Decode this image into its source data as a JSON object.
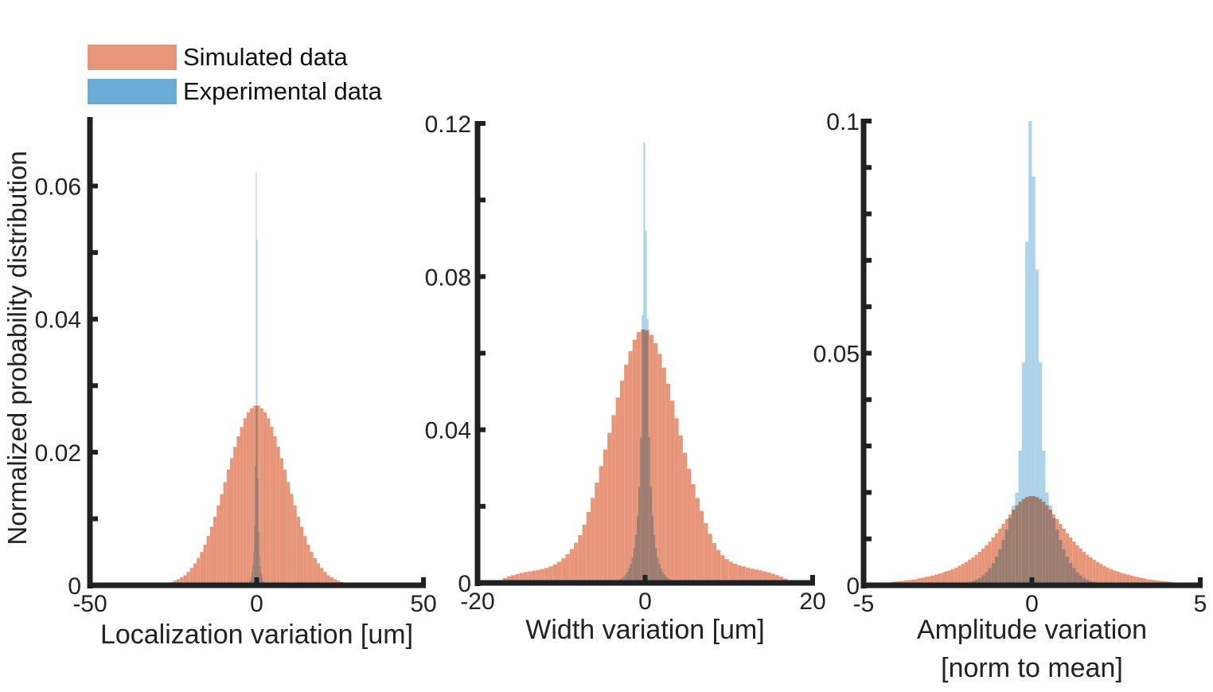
{
  "chart_data": {
    "type": "bar",
    "subtype": "overlaid-histogram",
    "ylabel": "Normalized probability distribution",
    "legend": {
      "placement": "top-left",
      "entries": [
        {
          "name": "Simulated data",
          "color": "#e8967a"
        },
        {
          "name": "Experimental data",
          "color": "#6aaed8"
        }
      ]
    },
    "overlap_color": "#8a88a4",
    "panels": [
      {
        "id": "localization",
        "xlabel": [
          "Localization variation [um]"
        ],
        "xlim": [
          -50,
          50
        ],
        "ylim": [
          0,
          0.07
        ],
        "xticks": [
          {
            "v": -50,
            "label": "-50"
          },
          {
            "v": 0,
            "label": "0"
          },
          {
            "v": 50,
            "label": "50"
          }
        ],
        "yticks_major": [
          {
            "v": 0,
            "label": "0"
          },
          {
            "v": 0.02,
            "label": "0.02"
          },
          {
            "v": 0.04,
            "label": "0.04"
          },
          {
            "v": 0.06,
            "label": "0.06"
          }
        ],
        "yticks_minor": [
          0.01,
          0.03,
          0.05
        ],
        "series": [
          {
            "name": "Simulated data",
            "bin_width": 1,
            "bin_centers": [
              -27.5,
              -26.5,
              -25.5,
              -24.5,
              -23.5,
              -22.5,
              -21.5,
              -20.5,
              -19.5,
              -18.5,
              -17.5,
              -16.5,
              -15.5,
              -14.5,
              -13.5,
              -12.5,
              -11.5,
              -10.5,
              -9.5,
              -8.5,
              -7.5,
              -6.5,
              -5.5,
              -4.5,
              -3.5,
              -2.5,
              -1.5,
              -0.5,
              0.5,
              1.5,
              2.5,
              3.5,
              4.5,
              5.5,
              6.5,
              7.5,
              8.5,
              9.5,
              10.5,
              11.5,
              12.5,
              13.5,
              14.5,
              15.5,
              16.5,
              17.5,
              18.5,
              19.5,
              20.5,
              21.5,
              22.5,
              23.5,
              24.5,
              25.5,
              26.5,
              27.5
            ],
            "values": [
              0.0002,
              0.0003,
              0.0005,
              0.0007,
              0.0009,
              0.0012,
              0.0015,
              0.002,
              0.0026,
              0.0033,
              0.0041,
              0.005,
              0.0061,
              0.0074,
              0.0088,
              0.0103,
              0.012,
              0.0137,
              0.0155,
              0.0174,
              0.0191,
              0.0208,
              0.0224,
              0.0238,
              0.0251,
              0.026,
              0.0266,
              0.027,
              0.027,
              0.0266,
              0.026,
              0.0251,
              0.0238,
              0.0224,
              0.0208,
              0.0191,
              0.0174,
              0.0155,
              0.0137,
              0.012,
              0.0103,
              0.0088,
              0.0074,
              0.0061,
              0.005,
              0.0041,
              0.0033,
              0.0026,
              0.002,
              0.0015,
              0.0012,
              0.0009,
              0.0007,
              0.0005,
              0.0003,
              0.0002
            ]
          },
          {
            "name": "Experimental data",
            "bin_width": 0.25,
            "bin_centers": [
              -2.125,
              -1.875,
              -1.625,
              -1.375,
              -1.125,
              -0.875,
              -0.625,
              -0.375,
              -0.125,
              0.125,
              0.375,
              0.625,
              0.875,
              1.125,
              1.375,
              1.625,
              1.875,
              2.125
            ],
            "values": [
              0.0004,
              0.0008,
              0.0012,
              0.002,
              0.003,
              0.005,
              0.009,
              0.018,
              0.062,
              0.052,
              0.016,
              0.008,
              0.0045,
              0.0028,
              0.0018,
              0.0011,
              0.0007,
              0.0004
            ]
          }
        ]
      },
      {
        "id": "width",
        "xlabel": [
          "Width variation [um]"
        ],
        "xlim": [
          -20,
          20
        ],
        "ylim": [
          0,
          0.12
        ],
        "xticks": [
          {
            "v": -20,
            "label": "-20"
          },
          {
            "v": 0,
            "label": "0"
          },
          {
            "v": 20,
            "label": "20"
          }
        ],
        "yticks_major": [
          {
            "v": 0,
            "label": "0"
          },
          {
            "v": 0.04,
            "label": "0.04"
          },
          {
            "v": 0.08,
            "label": "0.08"
          },
          {
            "v": 0.12,
            "label": "0.12"
          }
        ],
        "yticks_minor": [
          0.02,
          0.06,
          0.1
        ],
        "series": [
          {
            "name": "Simulated data",
            "bin_width": 0.5,
            "bin_centers": [
              -17.75,
              -17.25,
              -16.75,
              -16.25,
              -15.75,
              -15.25,
              -14.75,
              -14.25,
              -13.75,
              -13.25,
              -12.75,
              -12.25,
              -11.75,
              -11.25,
              -10.75,
              -10.25,
              -9.75,
              -9.25,
              -8.75,
              -8.25,
              -7.75,
              -7.25,
              -6.75,
              -6.25,
              -5.75,
              -5.25,
              -4.75,
              -4.25,
              -3.75,
              -3.25,
              -2.75,
              -2.25,
              -1.75,
              -1.25,
              -0.75,
              -0.25,
              0.25,
              0.75,
              1.25,
              1.75,
              2.25,
              2.75,
              3.25,
              3.75,
              4.25,
              4.75,
              5.25,
              5.75,
              6.25,
              6.75,
              7.25,
              7.75,
              8.25,
              8.75,
              9.25,
              9.75,
              10.25,
              10.75,
              11.25,
              11.75,
              12.25,
              12.75,
              13.25,
              13.75,
              14.25,
              14.75,
              15.25,
              15.75,
              16.25,
              16.75,
              17.25,
              17.75
            ],
            "values": [
              0.0003,
              0.0007,
              0.0012,
              0.0017,
              0.002,
              0.0023,
              0.0026,
              0.0028,
              0.003,
              0.0032,
              0.0034,
              0.0036,
              0.0039,
              0.0043,
              0.0048,
              0.0055,
              0.0064,
              0.0075,
              0.0088,
              0.0105,
              0.0125,
              0.0152,
              0.0185,
              0.0222,
              0.0262,
              0.0305,
              0.0348,
              0.0392,
              0.0438,
              0.0484,
              0.0528,
              0.057,
              0.0605,
              0.0635,
              0.0655,
              0.0662,
              0.066,
              0.0648,
              0.0626,
              0.0598,
              0.0562,
              0.052,
              0.0476,
              0.043,
              0.0385,
              0.034,
              0.0298,
              0.0258,
              0.0222,
              0.0188,
              0.0156,
              0.0128,
              0.0104,
              0.0086,
              0.0072,
              0.0062,
              0.0055,
              0.005,
              0.0046,
              0.0043,
              0.004,
              0.0037,
              0.0035,
              0.0033,
              0.003,
              0.0027,
              0.0024,
              0.002,
              0.0016,
              0.0011,
              0.0007,
              0.0003
            ]
          },
          {
            "name": "Experimental data",
            "bin_width": 0.2,
            "bin_centers": [
              -3.1,
              -2.9,
              -2.7,
              -2.5,
              -2.3,
              -2.1,
              -1.9,
              -1.7,
              -1.5,
              -1.3,
              -1.1,
              -0.9,
              -0.7,
              -0.5,
              -0.3,
              -0.1,
              0.1,
              0.3,
              0.5,
              0.7,
              0.9,
              1.1,
              1.3,
              1.5,
              1.7,
              1.9,
              2.1,
              2.3,
              2.5,
              2.7,
              2.9,
              3.1
            ],
            "values": [
              0.0008,
              0.001,
              0.0013,
              0.0017,
              0.0022,
              0.0029,
              0.0038,
              0.005,
              0.0066,
              0.009,
              0.0125,
              0.0175,
              0.025,
              0.038,
              0.07,
              0.115,
              0.092,
              0.069,
              0.038,
              0.025,
              0.0175,
              0.0125,
              0.009,
              0.0066,
              0.005,
              0.0038,
              0.0029,
              0.0022,
              0.0017,
              0.0013,
              0.001,
              0.0008
            ]
          }
        ]
      },
      {
        "id": "amplitude",
        "xlabel": [
          "Amplitude variation",
          "[norm to mean]"
        ],
        "xlim": [
          -5,
          5
        ],
        "ylim": [
          0,
          0.1
        ],
        "xticks": [
          {
            "v": -5,
            "label": "-5"
          },
          {
            "v": 0,
            "label": "0"
          },
          {
            "v": 5,
            "label": "5"
          }
        ],
        "yticks_major": [
          {
            "v": 0,
            "label": "0"
          },
          {
            "v": 0.05,
            "label": "0.05"
          },
          {
            "v": 0.1,
            "label": "0.1"
          }
        ],
        "yticks_minor": [
          0.01,
          0.02,
          0.03,
          0.04,
          0.06,
          0.07,
          0.08,
          0.09
        ],
        "series": [
          {
            "name": "Simulated data",
            "bin_width": 0.1,
            "bin_centers": [
              -4.95,
              -4.85,
              -4.75,
              -4.65,
              -4.55,
              -4.45,
              -4.35,
              -4.25,
              -4.15,
              -4.05,
              -3.95,
              -3.85,
              -3.75,
              -3.65,
              -3.55,
              -3.45,
              -3.35,
              -3.25,
              -3.15,
              -3.05,
              -2.95,
              -2.85,
              -2.75,
              -2.65,
              -2.55,
              -2.45,
              -2.35,
              -2.25,
              -2.15,
              -2.05,
              -1.95,
              -1.85,
              -1.75,
              -1.65,
              -1.55,
              -1.45,
              -1.35,
              -1.25,
              -1.15,
              -1.05,
              -0.95,
              -0.85,
              -0.75,
              -0.65,
              -0.55,
              -0.45,
              -0.35,
              -0.25,
              -0.15,
              -0.05,
              0.05,
              0.15,
              0.25,
              0.35,
              0.45,
              0.55,
              0.65,
              0.75,
              0.85,
              0.95,
              1.05,
              1.15,
              1.25,
              1.35,
              1.45,
              1.55,
              1.65,
              1.75,
              1.85,
              1.95,
              2.05,
              2.15,
              2.25,
              2.35,
              2.45,
              2.55,
              2.65,
              2.75,
              2.85,
              2.95,
              3.05,
              3.15,
              3.25,
              3.35,
              3.45,
              3.55,
              3.65,
              3.75,
              3.85,
              3.95,
              4.05,
              4.15,
              4.25,
              4.35,
              4.45,
              4.55,
              4.65,
              4.75,
              4.85,
              4.95
            ],
            "values": [
              0.0003,
              0.0003,
              0.0004,
              0.0004,
              0.0005,
              0.0005,
              0.0006,
              0.0006,
              0.0007,
              0.0008,
              0.0009,
              0.0009,
              0.001,
              0.0011,
              0.0012,
              0.0013,
              0.0015,
              0.0016,
              0.0018,
              0.0019,
              0.0021,
              0.0023,
              0.0025,
              0.0027,
              0.003,
              0.0032,
              0.0035,
              0.0038,
              0.0042,
              0.0046,
              0.005,
              0.0055,
              0.006,
              0.0066,
              0.0072,
              0.0079,
              0.0086,
              0.0094,
              0.0103,
              0.0112,
              0.0122,
              0.0132,
              0.0143,
              0.0153,
              0.0163,
              0.0172,
              0.018,
              0.0186,
              0.019,
              0.0192,
              0.0192,
              0.019,
              0.0186,
              0.018,
              0.0172,
              0.0163,
              0.0153,
              0.0143,
              0.0132,
              0.0122,
              0.0112,
              0.0103,
              0.0094,
              0.0086,
              0.0079,
              0.0072,
              0.0066,
              0.006,
              0.0055,
              0.005,
              0.0046,
              0.0042,
              0.0038,
              0.0035,
              0.0032,
              0.003,
              0.0027,
              0.0025,
              0.0023,
              0.0021,
              0.0019,
              0.0018,
              0.0016,
              0.0015,
              0.0013,
              0.0012,
              0.0011,
              0.001,
              0.0009,
              0.0009,
              0.0008,
              0.0007,
              0.0006,
              0.0006,
              0.0005,
              0.0005,
              0.0004,
              0.0004,
              0.0003,
              0.0003
            ]
          },
          {
            "name": "Experimental data",
            "bin_width": 0.1,
            "bin_centers": [
              -2.25,
              -2.15,
              -2.05,
              -1.95,
              -1.85,
              -1.75,
              -1.65,
              -1.55,
              -1.45,
              -1.35,
              -1.25,
              -1.15,
              -1.05,
              -0.95,
              -0.85,
              -0.75,
              -0.65,
              -0.55,
              -0.45,
              -0.35,
              -0.25,
              -0.15,
              -0.05,
              0.05,
              0.15,
              0.25,
              0.35,
              0.45,
              0.55,
              0.65,
              0.75,
              0.85,
              0.95,
              1.05,
              1.15,
              1.25,
              1.35,
              1.45,
              1.55,
              1.65,
              1.75,
              1.85,
              1.95,
              2.05,
              2.15,
              2.25
            ],
            "values": [
              0.0002,
              0.0003,
              0.0004,
              0.0005,
              0.0007,
              0.0009,
              0.0012,
              0.0016,
              0.0021,
              0.0028,
              0.0037,
              0.0048,
              0.0062,
              0.0078,
              0.0098,
              0.012,
              0.0145,
              0.0172,
              0.02,
              0.029,
              0.048,
              0.074,
              0.1,
              0.088,
              0.068,
              0.048,
              0.029,
              0.02,
              0.0172,
              0.0145,
              0.012,
              0.0098,
              0.0078,
              0.0062,
              0.0048,
              0.0037,
              0.0028,
              0.0021,
              0.0016,
              0.0012,
              0.0009,
              0.0007,
              0.0005,
              0.0004,
              0.0003,
              0.0002
            ]
          }
        ]
      }
    ]
  }
}
